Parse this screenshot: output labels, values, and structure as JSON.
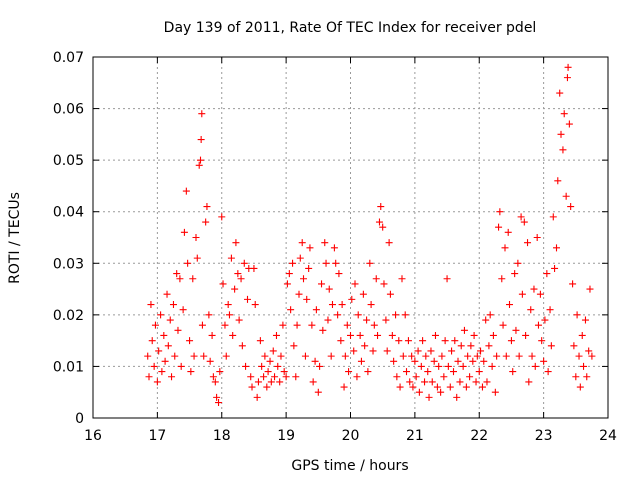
{
  "chart_data": {
    "type": "scatter",
    "title": "Day 139 of 2011, Rate Of TEC Index for receiver pdel",
    "xlabel": "GPS time / hours",
    "ylabel": "ROTI / TECUs",
    "xlim": [
      16,
      24
    ],
    "ylim": [
      0,
      0.07
    ],
    "xticks": [
      16,
      17,
      18,
      19,
      20,
      21,
      22,
      23,
      24
    ],
    "yticks": [
      0,
      0.01,
      0.02,
      0.03,
      0.04,
      0.05,
      0.06,
      0.07
    ],
    "xtick_labels": [
      "16",
      "17",
      "18",
      "19",
      "20",
      "21",
      "22",
      "23",
      "24"
    ],
    "ytick_labels": [
      "0",
      "0.01",
      "0.02",
      "0.03",
      "0.04",
      "0.05",
      "0.06",
      "0.07"
    ],
    "grid": true,
    "marker": "+",
    "color": "#ff0000",
    "series": [
      {
        "name": "ROTI",
        "points": [
          [
            16.85,
            0.012
          ],
          [
            16.87,
            0.008
          ],
          [
            16.9,
            0.022
          ],
          [
            16.92,
            0.015
          ],
          [
            16.95,
            0.01
          ],
          [
            16.97,
            0.018
          ],
          [
            17.0,
            0.007
          ],
          [
            17.02,
            0.013
          ],
          [
            17.05,
            0.02
          ],
          [
            17.07,
            0.009
          ],
          [
            17.1,
            0.016
          ],
          [
            17.12,
            0.011
          ],
          [
            17.15,
            0.024
          ],
          [
            17.17,
            0.014
          ],
          [
            17.2,
            0.019
          ],
          [
            17.22,
            0.008
          ],
          [
            17.25,
            0.022
          ],
          [
            17.27,
            0.012
          ],
          [
            17.3,
            0.028
          ],
          [
            17.32,
            0.017
          ],
          [
            17.35,
            0.027
          ],
          [
            17.37,
            0.01
          ],
          [
            17.4,
            0.021
          ],
          [
            17.42,
            0.036
          ],
          [
            17.45,
            0.044
          ],
          [
            17.47,
            0.03
          ],
          [
            17.5,
            0.015
          ],
          [
            17.52,
            0.009
          ],
          [
            17.55,
            0.027
          ],
          [
            17.57,
            0.012
          ],
          [
            17.6,
            0.035
          ],
          [
            17.62,
            0.031
          ],
          [
            17.65,
            0.049
          ],
          [
            17.67,
            0.05
          ],
          [
            17.68,
            0.054
          ],
          [
            17.69,
            0.059
          ],
          [
            17.7,
            0.018
          ],
          [
            17.72,
            0.012
          ],
          [
            17.75,
            0.038
          ],
          [
            17.77,
            0.041
          ],
          [
            17.8,
            0.02
          ],
          [
            17.82,
            0.011
          ],
          [
            17.85,
            0.016
          ],
          [
            17.87,
            0.008
          ],
          [
            17.9,
            0.007
          ],
          [
            17.92,
            0.004
          ],
          [
            17.95,
            0.003
          ],
          [
            17.97,
            0.009
          ],
          [
            18.0,
            0.039
          ],
          [
            18.02,
            0.026
          ],
          [
            18.05,
            0.018
          ],
          [
            18.07,
            0.012
          ],
          [
            18.1,
            0.022
          ],
          [
            18.12,
            0.02
          ],
          [
            18.15,
            0.031
          ],
          [
            18.17,
            0.016
          ],
          [
            18.2,
            0.025
          ],
          [
            18.22,
            0.034
          ],
          [
            18.25,
            0.028
          ],
          [
            18.27,
            0.019
          ],
          [
            18.3,
            0.027
          ],
          [
            18.32,
            0.014
          ],
          [
            18.35,
            0.03
          ],
          [
            18.37,
            0.01
          ],
          [
            18.4,
            0.023
          ],
          [
            18.42,
            0.029
          ],
          [
            18.45,
            0.008
          ],
          [
            18.47,
            0.006
          ],
          [
            18.5,
            0.029
          ],
          [
            18.52,
            0.022
          ],
          [
            18.55,
            0.004
          ],
          [
            18.57,
            0.007
          ],
          [
            18.6,
            0.015
          ],
          [
            18.62,
            0.01
          ],
          [
            18.65,
            0.008
          ],
          [
            18.67,
            0.012
          ],
          [
            18.7,
            0.006
          ],
          [
            18.72,
            0.009
          ],
          [
            18.75,
            0.011
          ],
          [
            18.77,
            0.007
          ],
          [
            18.8,
            0.013
          ],
          [
            18.82,
            0.008
          ],
          [
            18.85,
            0.016
          ],
          [
            18.87,
            0.01
          ],
          [
            18.9,
            0.007
          ],
          [
            18.92,
            0.012
          ],
          [
            18.95,
            0.018
          ],
          [
            18.97,
            0.009
          ],
          [
            19.0,
            0.008
          ],
          [
            19.02,
            0.026
          ],
          [
            19.05,
            0.028
          ],
          [
            19.07,
            0.021
          ],
          [
            19.1,
            0.03
          ],
          [
            19.12,
            0.014
          ],
          [
            19.15,
            0.008
          ],
          [
            19.17,
            0.018
          ],
          [
            19.2,
            0.024
          ],
          [
            19.22,
            0.031
          ],
          [
            19.25,
            0.034
          ],
          [
            19.27,
            0.027
          ],
          [
            19.3,
            0.012
          ],
          [
            19.32,
            0.023
          ],
          [
            19.35,
            0.029
          ],
          [
            19.37,
            0.033
          ],
          [
            19.4,
            0.018
          ],
          [
            19.42,
            0.007
          ],
          [
            19.45,
            0.011
          ],
          [
            19.47,
            0.021
          ],
          [
            19.5,
            0.005
          ],
          [
            19.52,
            0.01
          ],
          [
            19.55,
            0.026
          ],
          [
            19.57,
            0.017
          ],
          [
            19.6,
            0.034
          ],
          [
            19.62,
            0.03
          ],
          [
            19.65,
            0.019
          ],
          [
            19.67,
            0.025
          ],
          [
            19.7,
            0.012
          ],
          [
            19.72,
            0.022
          ],
          [
            19.75,
            0.033
          ],
          [
            19.77,
            0.03
          ],
          [
            19.8,
            0.02
          ],
          [
            19.82,
            0.028
          ],
          [
            19.85,
            0.015
          ],
          [
            19.87,
            0.022
          ],
          [
            19.9,
            0.006
          ],
          [
            19.92,
            0.012
          ],
          [
            19.95,
            0.018
          ],
          [
            19.97,
            0.009
          ],
          [
            20.0,
            0.016
          ],
          [
            20.02,
            0.023
          ],
          [
            20.05,
            0.013
          ],
          [
            20.07,
            0.026
          ],
          [
            20.1,
            0.008
          ],
          [
            20.12,
            0.02
          ],
          [
            20.15,
            0.016
          ],
          [
            20.17,
            0.011
          ],
          [
            20.2,
            0.024
          ],
          [
            20.22,
            0.014
          ],
          [
            20.25,
            0.019
          ],
          [
            20.27,
            0.009
          ],
          [
            20.3,
            0.03
          ],
          [
            20.32,
            0.022
          ],
          [
            20.35,
            0.013
          ],
          [
            20.37,
            0.018
          ],
          [
            20.4,
            0.027
          ],
          [
            20.42,
            0.016
          ],
          [
            20.45,
            0.038
          ],
          [
            20.47,
            0.041
          ],
          [
            20.5,
            0.037
          ],
          [
            20.52,
            0.026
          ],
          [
            20.55,
            0.019
          ],
          [
            20.57,
            0.013
          ],
          [
            20.6,
            0.034
          ],
          [
            20.62,
            0.024
          ],
          [
            20.65,
            0.016
          ],
          [
            20.67,
            0.011
          ],
          [
            20.7,
            0.02
          ],
          [
            20.72,
            0.008
          ],
          [
            20.75,
            0.015
          ],
          [
            20.77,
            0.006
          ],
          [
            20.8,
            0.027
          ],
          [
            20.82,
            0.012
          ],
          [
            20.85,
            0.02
          ],
          [
            20.87,
            0.009
          ],
          [
            20.9,
            0.015
          ],
          [
            20.92,
            0.007
          ],
          [
            20.95,
            0.012
          ],
          [
            20.97,
            0.006
          ],
          [
            21.0,
            0.011
          ],
          [
            21.02,
            0.008
          ],
          [
            21.05,
            0.013
          ],
          [
            21.07,
            0.005
          ],
          [
            21.1,
            0.01
          ],
          [
            21.12,
            0.015
          ],
          [
            21.15,
            0.007
          ],
          [
            21.17,
            0.012
          ],
          [
            21.2,
            0.009
          ],
          [
            21.22,
            0.004
          ],
          [
            21.25,
            0.013
          ],
          [
            21.27,
            0.007
          ],
          [
            21.3,
            0.011
          ],
          [
            21.32,
            0.016
          ],
          [
            21.35,
            0.006
          ],
          [
            21.37,
            0.01
          ],
          [
            21.4,
            0.005
          ],
          [
            21.42,
            0.012
          ],
          [
            21.45,
            0.008
          ],
          [
            21.47,
            0.015
          ],
          [
            21.5,
            0.027
          ],
          [
            21.52,
            0.01
          ],
          [
            21.55,
            0.006
          ],
          [
            21.57,
            0.013
          ],
          [
            21.6,
            0.009
          ],
          [
            21.62,
            0.015
          ],
          [
            21.65,
            0.004
          ],
          [
            21.67,
            0.011
          ],
          [
            21.7,
            0.007
          ],
          [
            21.72,
            0.014
          ],
          [
            21.75,
            0.01
          ],
          [
            21.77,
            0.017
          ],
          [
            21.8,
            0.006
          ],
          [
            21.82,
            0.012
          ],
          [
            21.85,
            0.008
          ],
          [
            21.87,
            0.014
          ],
          [
            21.9,
            0.011
          ],
          [
            21.92,
            0.016
          ],
          [
            21.95,
            0.007
          ],
          [
            21.97,
            0.012
          ],
          [
            22.0,
            0.009
          ],
          [
            22.02,
            0.013
          ],
          [
            22.05,
            0.006
          ],
          [
            22.07,
            0.011
          ],
          [
            22.1,
            0.019
          ],
          [
            22.12,
            0.007
          ],
          [
            22.15,
            0.014
          ],
          [
            22.17,
            0.02
          ],
          [
            22.2,
            0.01
          ],
          [
            22.22,
            0.016
          ],
          [
            22.25,
            0.005
          ],
          [
            22.27,
            0.012
          ],
          [
            22.3,
            0.037
          ],
          [
            22.32,
            0.04
          ],
          [
            22.35,
            0.027
          ],
          [
            22.37,
            0.018
          ],
          [
            22.4,
            0.033
          ],
          [
            22.42,
            0.012
          ],
          [
            22.45,
            0.036
          ],
          [
            22.47,
            0.022
          ],
          [
            22.5,
            0.015
          ],
          [
            22.52,
            0.009
          ],
          [
            22.55,
            0.028
          ],
          [
            22.57,
            0.017
          ],
          [
            22.6,
            0.03
          ],
          [
            22.62,
            0.012
          ],
          [
            22.65,
            0.039
          ],
          [
            22.67,
            0.024
          ],
          [
            22.7,
            0.038
          ],
          [
            22.72,
            0.016
          ],
          [
            22.75,
            0.034
          ],
          [
            22.77,
            0.007
          ],
          [
            22.8,
            0.021
          ],
          [
            22.82,
            0.012
          ],
          [
            22.85,
            0.025
          ],
          [
            22.87,
            0.01
          ],
          [
            22.9,
            0.035
          ],
          [
            22.92,
            0.018
          ],
          [
            22.95,
            0.024
          ],
          [
            22.97,
            0.015
          ],
          [
            23.0,
            0.011
          ],
          [
            23.02,
            0.019
          ],
          [
            23.05,
            0.028
          ],
          [
            23.07,
            0.009
          ],
          [
            23.1,
            0.021
          ],
          [
            23.12,
            0.014
          ],
          [
            23.15,
            0.039
          ],
          [
            23.17,
            0.029
          ],
          [
            23.2,
            0.033
          ],
          [
            23.22,
            0.046
          ],
          [
            23.25,
            0.063
          ],
          [
            23.27,
            0.055
          ],
          [
            23.3,
            0.052
          ],
          [
            23.32,
            0.059
          ],
          [
            23.35,
            0.043
          ],
          [
            23.37,
            0.066
          ],
          [
            23.38,
            0.068
          ],
          [
            23.4,
            0.057
          ],
          [
            23.42,
            0.041
          ],
          [
            23.45,
            0.026
          ],
          [
            23.47,
            0.014
          ],
          [
            23.5,
            0.008
          ],
          [
            23.52,
            0.02
          ],
          [
            23.55,
            0.012
          ],
          [
            23.57,
            0.006
          ],
          [
            23.6,
            0.016
          ],
          [
            23.62,
            0.01
          ],
          [
            23.65,
            0.019
          ],
          [
            23.67,
            0.008
          ],
          [
            23.7,
            0.013
          ],
          [
            23.72,
            0.025
          ],
          [
            23.75,
            0.012
          ]
        ]
      }
    ]
  }
}
